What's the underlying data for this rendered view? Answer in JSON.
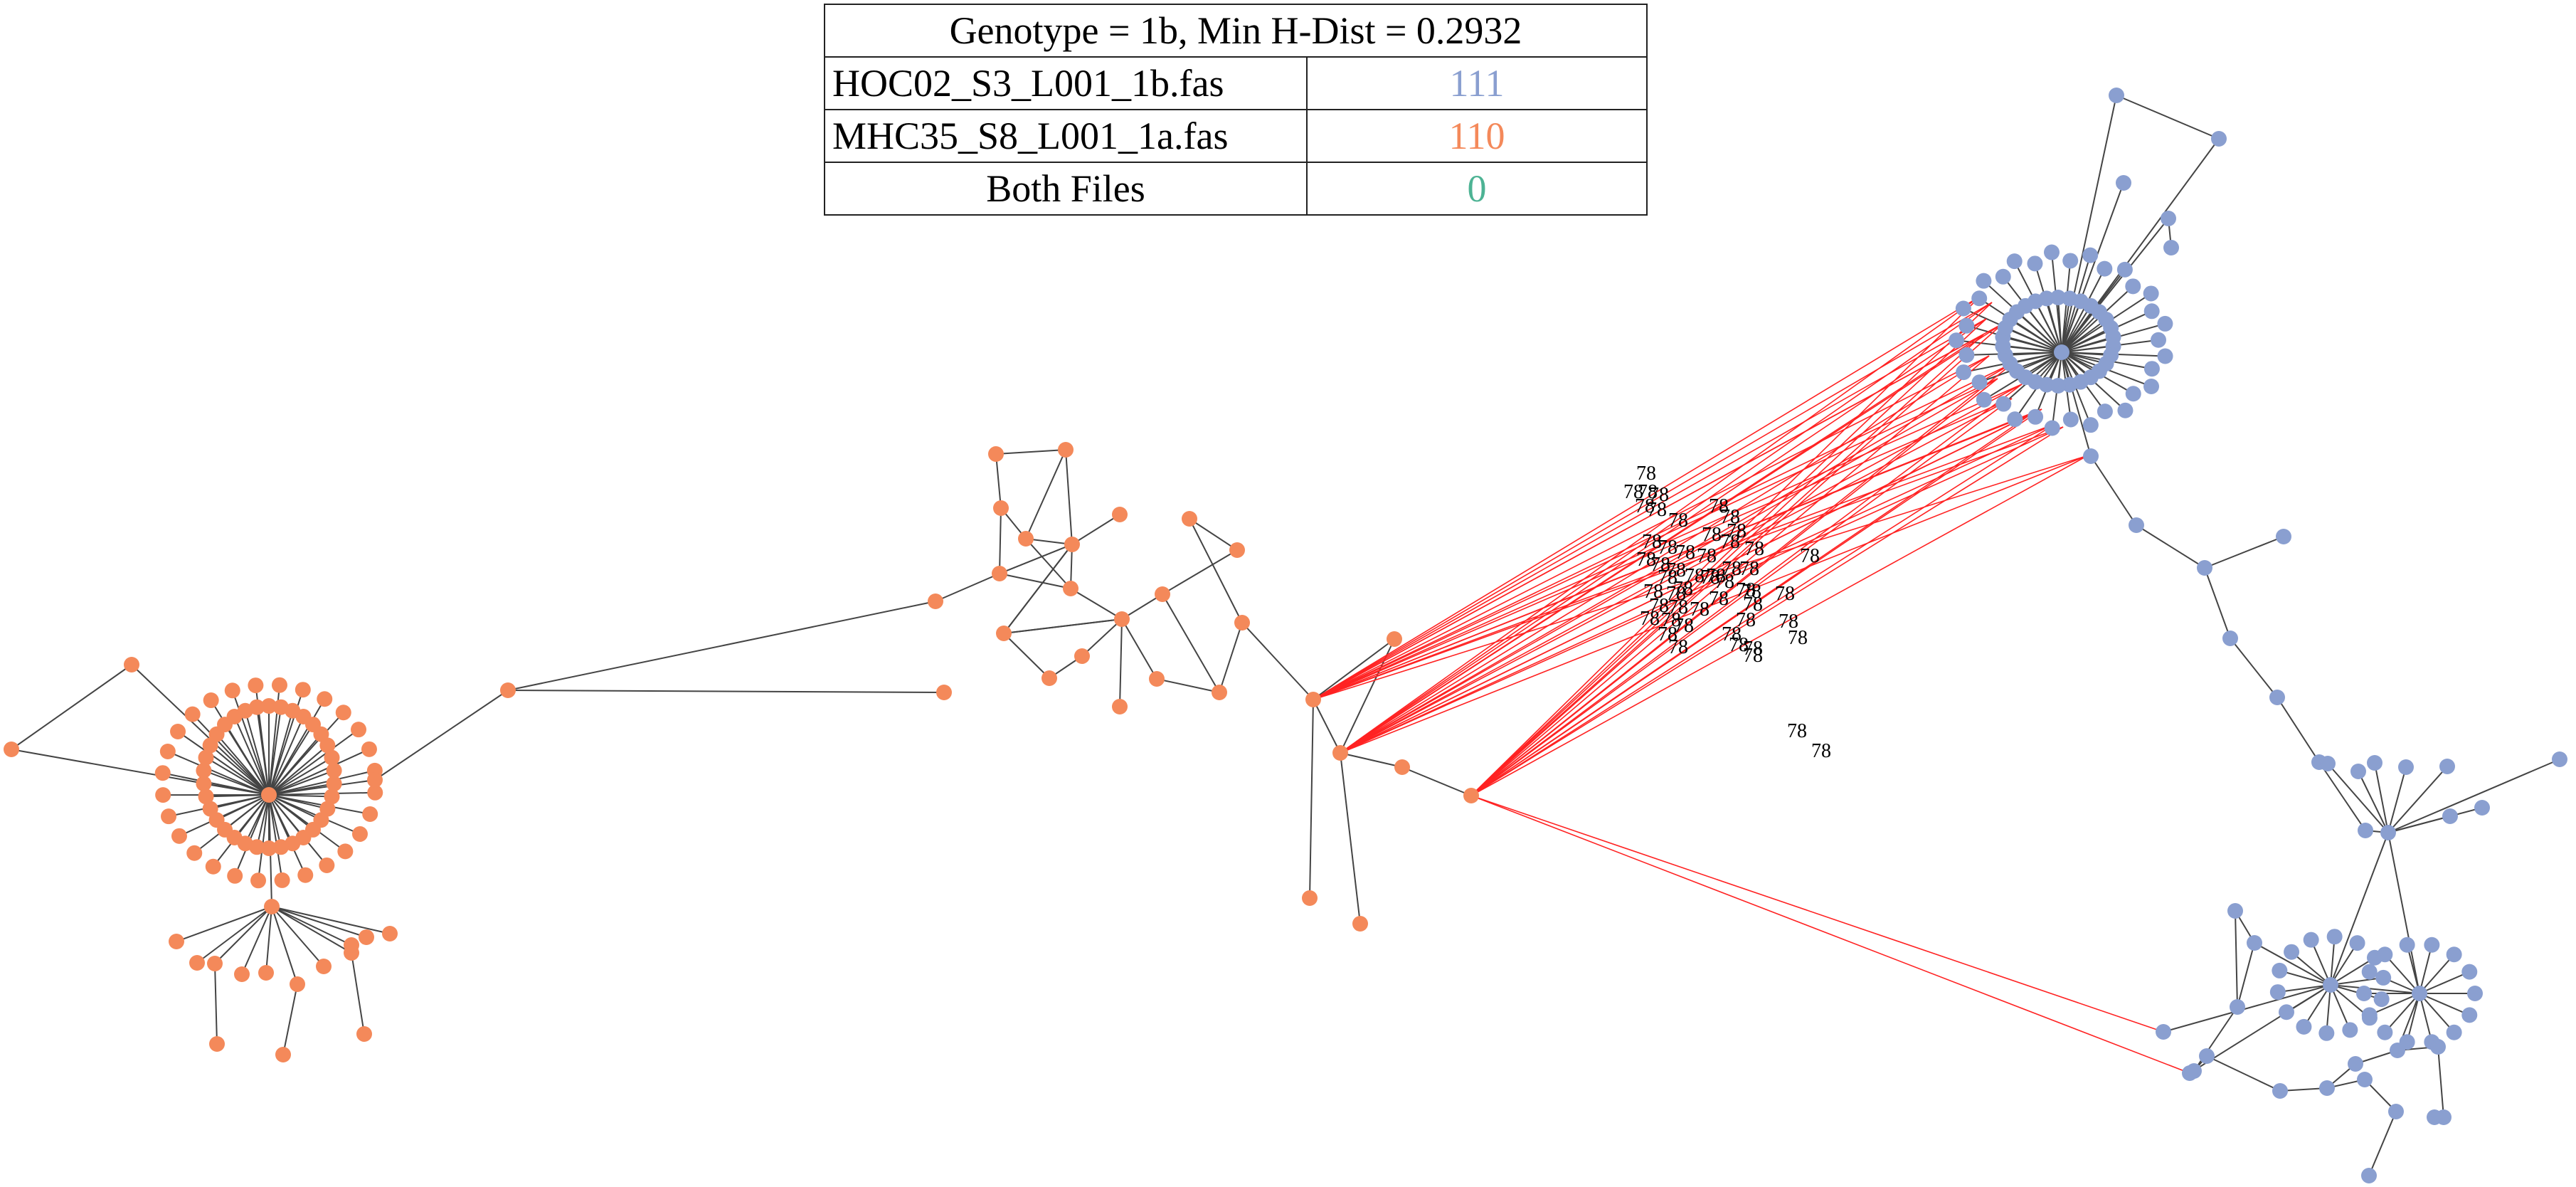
{
  "legend": {
    "title": "Genotype = 1b, Min H-Dist = 0.2932",
    "rows": [
      {
        "label": "HOC02_S3_L001_1b.fas",
        "count": "111",
        "color": "#8a9fd0"
      },
      {
        "label": "MHC35_S8_L001_1a.fas",
        "count": "110",
        "color": "#f4895a"
      },
      {
        "label": "Both Files",
        "count": "0",
        "color": "#4db394"
      }
    ]
  },
  "colors": {
    "file1_nodes": "#8a9fd0",
    "file2_nodes": "#f4895a",
    "intra_edge": "#444444",
    "inter_edge": "#ff2222"
  },
  "inter_edge_label": "78"
}
